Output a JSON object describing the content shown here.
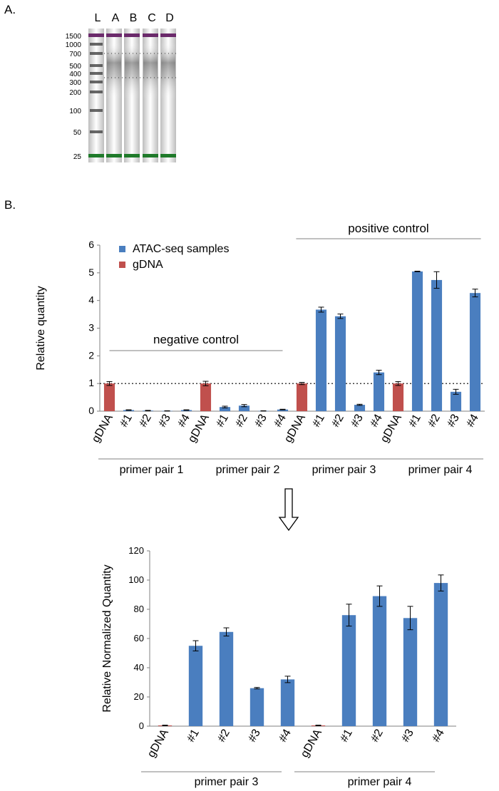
{
  "panels": {
    "a_label": "A.",
    "b_label": "B."
  },
  "gel": {
    "lane_labels": [
      "L",
      "A",
      "B",
      "C",
      "D"
    ],
    "ladder_bands": [
      "1500",
      "1000",
      "700",
      "500",
      "400",
      "300",
      "200",
      "100",
      "50",
      "25"
    ],
    "upper_marker_color": "#6b2a6b",
    "lower_marker_color": "#1f7a2a"
  },
  "chart_data": [
    {
      "type": "bar",
      "ylabel": "Relative quantity",
      "ylim": [
        0,
        6
      ],
      "yticks": [
        "0",
        "1",
        "2",
        "3",
        "4",
        "5",
        "6"
      ],
      "reference_line": 1,
      "legend": [
        {
          "name": "ATAC-seq samples",
          "color": "#4a7ebf"
        },
        {
          "name": "gDNA",
          "color": "#c0504d"
        }
      ],
      "categories": [
        "gDNA",
        "#1",
        "#2",
        "#3",
        "#4",
        "gDNA",
        "#1",
        "#2",
        "#3",
        "#4",
        "gDNA",
        "#1",
        "#2",
        "#3",
        "#4",
        "gDNA",
        "#1",
        "#2",
        "#3",
        "#4"
      ],
      "values": [
        1.0,
        0.04,
        0.02,
        0.01,
        0.04,
        1.0,
        0.15,
        0.2,
        0.01,
        0.06,
        1.0,
        3.67,
        3.43,
        0.23,
        1.4,
        1.0,
        5.05,
        4.74,
        0.7,
        4.27
      ],
      "errors": [
        0.07,
        0.01,
        0.01,
        0.005,
        0.01,
        0.08,
        0.03,
        0.04,
        0.005,
        0.01,
        0.04,
        0.09,
        0.08,
        0.02,
        0.08,
        0.07,
        0.01,
        0.3,
        0.09,
        0.14
      ],
      "kinds": [
        "gDNA",
        "ATAC",
        "ATAC",
        "ATAC",
        "ATAC",
        "gDNA",
        "ATAC",
        "ATAC",
        "ATAC",
        "ATAC",
        "gDNA",
        "ATAC",
        "ATAC",
        "ATAC",
        "ATAC",
        "gDNA",
        "ATAC",
        "ATAC",
        "ATAC",
        "ATAC"
      ],
      "groups": [
        "primer pair 1",
        "primer pair 2",
        "primer pair 3",
        "primer pair 4"
      ],
      "annotations": {
        "negative": "negative control",
        "positive": "positive control"
      }
    },
    {
      "type": "bar",
      "ylabel": "Relative Normalized Quantity",
      "ylim": [
        0,
        120
      ],
      "yticks": [
        "0",
        "20",
        "40",
        "60",
        "80",
        "100",
        "120"
      ],
      "categories": [
        "gDNA",
        "#1",
        "#2",
        "#3",
        "#4",
        "gDNA",
        "#1",
        "#2",
        "#3",
        "#4"
      ],
      "values": [
        0.5,
        55,
        64.5,
        26,
        32,
        0.5,
        76,
        89,
        74,
        98
      ],
      "errors": [
        0.2,
        3.5,
        2.8,
        0.5,
        2.2,
        0.2,
        7.5,
        7,
        8,
        5.5
      ],
      "kinds": [
        "gDNA",
        "ATAC",
        "ATAC",
        "ATAC",
        "ATAC",
        "gDNA",
        "ATAC",
        "ATAC",
        "ATAC",
        "ATAC"
      ],
      "groups": [
        "primer pair 3",
        "primer pair 4"
      ]
    }
  ]
}
